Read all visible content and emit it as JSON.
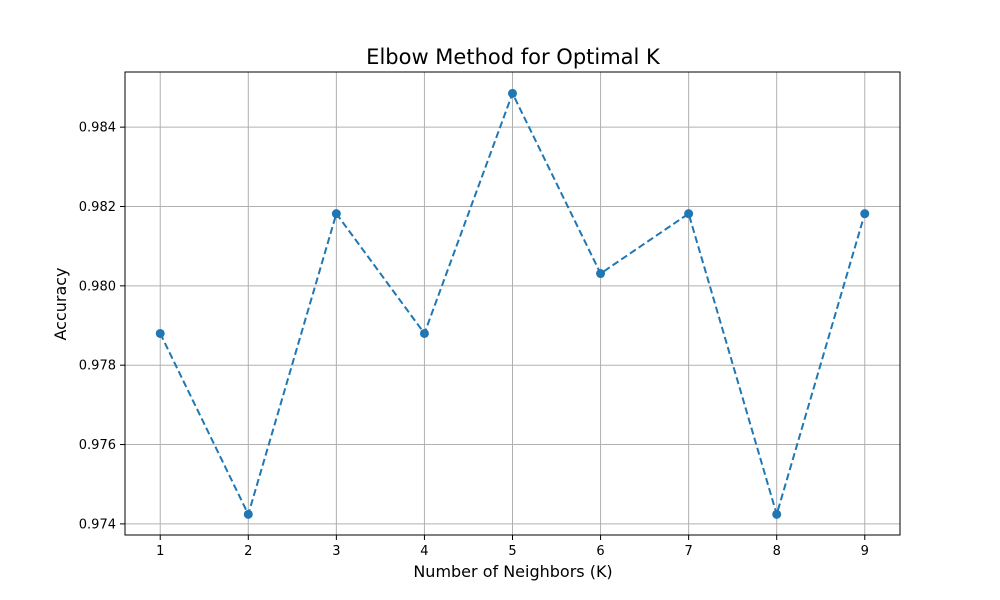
{
  "colors": {
    "series": "#1f77b4",
    "grid": "#b0b0b0"
  },
  "chart_data": {
    "type": "line",
    "title": "Elbow Method for Optimal K",
    "xlabel": "Number of Neighbors (K)",
    "ylabel": "Accuracy",
    "x": [
      1,
      2,
      3,
      4,
      5,
      6,
      7,
      8,
      9
    ],
    "x_ticks": [
      "1",
      "2",
      "3",
      "4",
      "5",
      "6",
      "7",
      "8",
      "9"
    ],
    "y_ticks": [
      "0.974",
      "0.976",
      "0.978",
      "0.980",
      "0.982",
      "0.984"
    ],
    "xlim": [
      0.6,
      9.4
    ],
    "ylim": [
      0.97372,
      0.98539
    ],
    "grid": true,
    "series": [
      {
        "name": "Accuracy",
        "line_style": "dashed",
        "marker": "circle",
        "values": [
          0.9788,
          0.97424,
          0.98182,
          0.9788,
          0.98485,
          0.98031,
          0.98182,
          0.97424,
          0.98182
        ]
      }
    ]
  }
}
